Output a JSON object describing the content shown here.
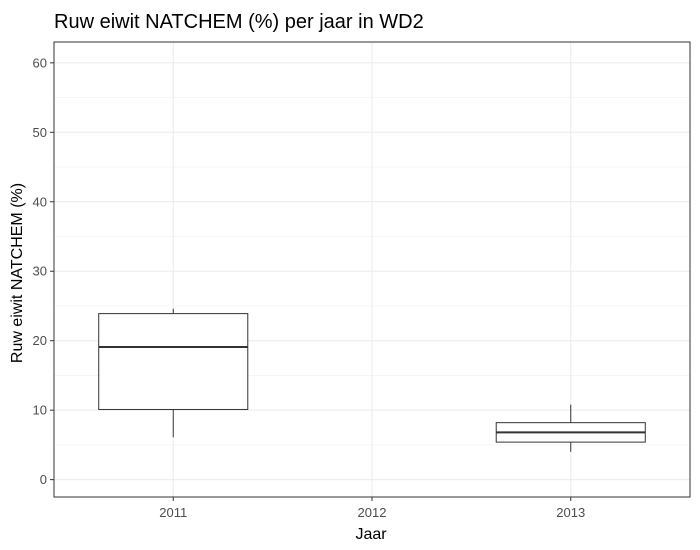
{
  "chart_data": {
    "type": "boxplot",
    "title": "Ruw eiwit NATCHEM (%) per jaar in WD2",
    "xlabel": "Jaar",
    "ylabel": "Ruw eiwit NATCHEM (%)",
    "categories": [
      "2011",
      "2012",
      "2013"
    ],
    "ylim": [
      -2.5,
      63
    ],
    "yticks": [
      0,
      10,
      20,
      30,
      40,
      50,
      60
    ],
    "grid": true,
    "boxes": [
      {
        "category": "2011",
        "whisker_low": 6.1,
        "q1": 10.1,
        "median": 19.1,
        "q3": 23.9,
        "whisker_high": 24.6
      },
      {
        "category": "2012",
        "whisker_low": null,
        "q1": null,
        "median": null,
        "q3": null,
        "whisker_high": null
      },
      {
        "category": "2013",
        "whisker_low": 4.0,
        "q1": 5.4,
        "median": 6.8,
        "q3": 8.2,
        "whisker_high": 10.8
      }
    ]
  }
}
